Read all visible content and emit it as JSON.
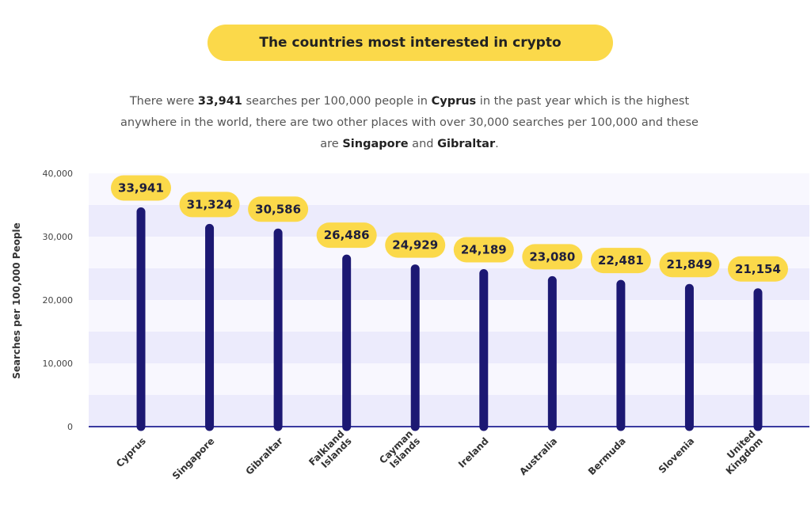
{
  "header": {
    "title": "The countries most interested in crypto",
    "desc": {
      "p1": "There were ",
      "b1": "33,941",
      "p2": " searches per 100,000 people in ",
      "b2": "Cyprus",
      "p3": " in the past year which is the highest anywhere in the world, there are two other places with over 30,000 searches per 100,000 and these are ",
      "b3": "Singapore",
      "p4": " and ",
      "b4": "Gibraltar",
      "p5": "."
    }
  },
  "chart_data": {
    "type": "bar",
    "ylabel": "Searches per 100,000 People",
    "ylim": [
      0,
      40000
    ],
    "yticks": [
      0,
      10000,
      20000,
      30000,
      40000
    ],
    "ytick_labels": [
      "0",
      "10,000",
      "20,000",
      "30,000",
      "40,000"
    ],
    "categories": [
      [
        "Cyprus"
      ],
      [
        "Singapore"
      ],
      [
        "Gibraltar"
      ],
      [
        "Falkland",
        "Islands"
      ],
      [
        "Cayman",
        "Islands"
      ],
      [
        "Ireland"
      ],
      [
        "Australia"
      ],
      [
        "Bermuda"
      ],
      [
        "Slovenia"
      ],
      [
        "United",
        "Kingdom"
      ]
    ],
    "values": [
      33941,
      31324,
      30586,
      26486,
      24929,
      24189,
      23080,
      22481,
      21849,
      21154
    ],
    "value_labels": [
      "33,941",
      "31,324",
      "30,586",
      "26,486",
      "24,929",
      "24,189",
      "23,080",
      "22,481",
      "21,849",
      "21,154"
    ],
    "colors": {
      "bar": "#1c1873",
      "label_pill": "#fbd94a",
      "band": "#ecebfc",
      "axis": "#3a3aa0"
    }
  }
}
